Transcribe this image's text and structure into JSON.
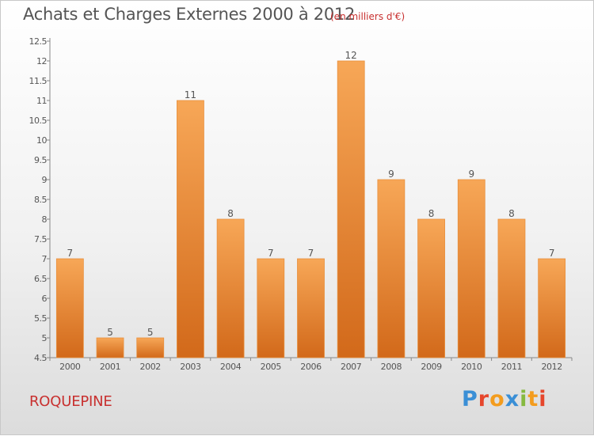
{
  "header": {
    "title": "Achats et Charges Externes 2000 à 2012",
    "subtitle": "(en milliers d'€)"
  },
  "footer": {
    "commune": "ROQUEPINE",
    "logo_text": "Proxiti"
  },
  "colors": {
    "bar_light": "#f7a757",
    "bar_dark": "#d2691a",
    "title": "#555555",
    "accent_red": "#c8302f"
  },
  "chart_data": {
    "type": "bar",
    "title": "Achats et Charges Externes 2000 à 2012",
    "subtitle": "(en milliers d'€)",
    "xlabel": "",
    "ylabel": "",
    "categories": [
      "2000",
      "2001",
      "2002",
      "2003",
      "2004",
      "2005",
      "2006",
      "2007",
      "2008",
      "2009",
      "2010",
      "2011",
      "2012"
    ],
    "values": [
      7,
      5,
      5,
      11,
      8,
      7,
      7,
      12,
      9,
      8,
      9,
      8,
      7
    ],
    "ylim": [
      4.5,
      12.5
    ],
    "yticks": [
      "4.5",
      "5",
      "5.5",
      "6",
      "6.5",
      "7",
      "7.5",
      "8",
      "8.5",
      "9",
      "9.5",
      "10",
      "10.5",
      "11",
      "11.5",
      "12",
      "12.5"
    ],
    "grid": false,
    "legend": "none"
  }
}
